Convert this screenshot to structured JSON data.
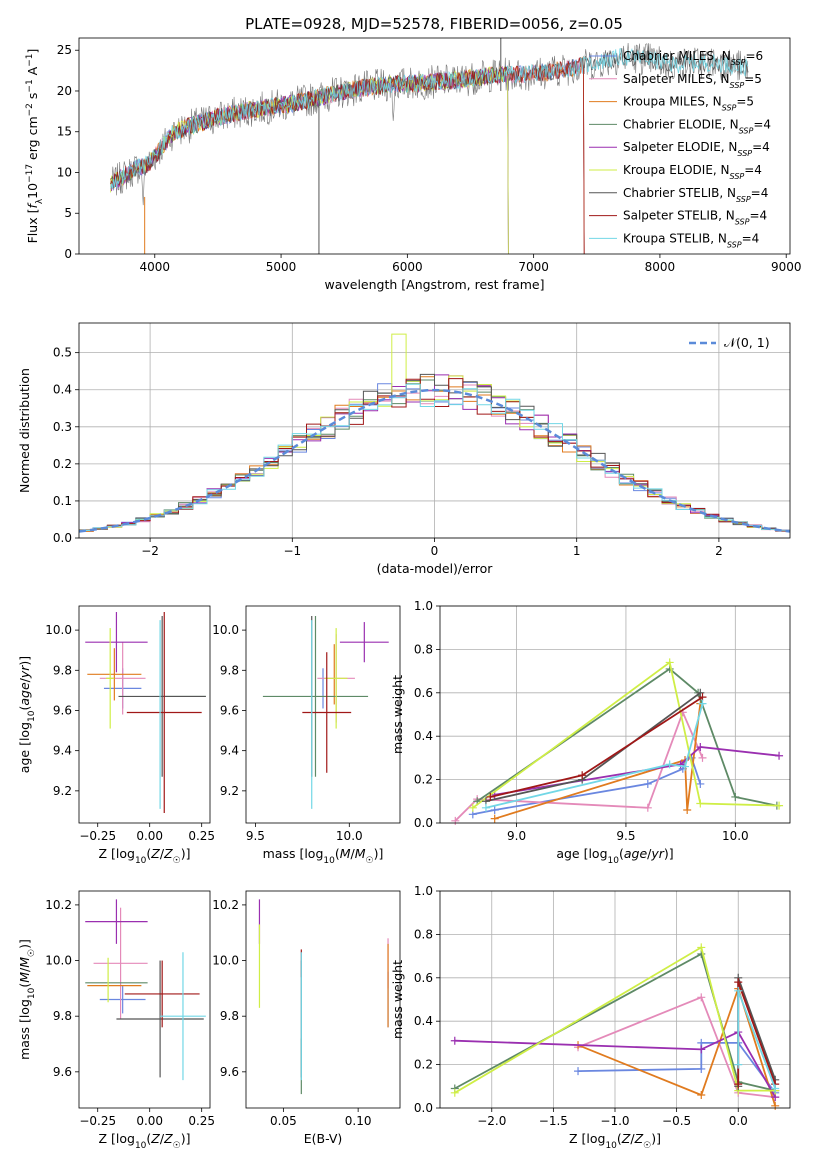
{
  "figure_title": "PLATE=0928, MJD=52578, FIBERID=0056, z=0.05",
  "colors": {
    "Chabrier MILES": "#6a87e0",
    "Salpeter MILES": "#e48ab9",
    "Kroupa MILES": "#e07b1f",
    "Chabrier ELODIE": "#5e8a66",
    "Salpeter ELODIE": "#9a2fb0",
    "Kroupa ELODIE": "#cfee46",
    "Chabrier STELIB": "#555555",
    "Salpeter STELIB": "#a01818",
    "Kroupa STELIB": "#72d7e6"
  },
  "chart_data": [
    {
      "id": "spectrum",
      "type": "line",
      "title": "PLATE=0928, MJD=52578, FIBERID=0056, z=0.05",
      "xlabel": "wavelength [Angstrom, rest frame]",
      "ylabel": "Flux [f_λ 10^-17 erg cm^-2 s^-1 A^-1]",
      "xlim": [
        3400,
        9030
      ],
      "ylim": [
        0,
        26.5
      ],
      "xticks": [
        4000,
        5000,
        6000,
        7000,
        8000,
        9000
      ],
      "yticks": [
        0,
        5,
        10,
        15,
        20,
        25
      ],
      "grid": false,
      "legend": "upper right",
      "continuum": {
        "x": [
          3650,
          3750,
          3850,
          3950,
          4050,
          4150,
          4300,
          4500,
          4700,
          4900,
          5100,
          5300,
          5500,
          5700,
          5900,
          6100,
          6300,
          6500,
          6700,
          6900,
          7100,
          7300,
          7500,
          7700,
          7900,
          8100,
          8300,
          8500,
          8700
        ],
        "y": [
          8.5,
          9.5,
          10.5,
          11,
          13,
          15,
          15.8,
          16.8,
          17.5,
          18,
          18.5,
          19.2,
          20,
          20.5,
          20.8,
          21,
          21.2,
          21.5,
          22,
          22,
          22.3,
          22.8,
          23.5,
          24.2,
          24,
          23.2,
          23.5,
          23.4,
          22.8
        ]
      },
      "series": [
        {
          "name": "Chabrier MILES",
          "label": "Chabrier MILES, N",
          "nssp": "=6",
          "x_range": [
            3650,
            7400
          ]
        },
        {
          "name": "Salpeter MILES",
          "label": "Salpeter MILES, N",
          "nssp": "=5",
          "x_range": [
            3650,
            7400
          ]
        },
        {
          "name": "Kroupa MILES",
          "label": "Kroupa MILES, N",
          "nssp": "=5",
          "x_range": [
            3650,
            7400
          ]
        },
        {
          "name": "Chabrier ELODIE",
          "label": "Chabrier ELODIE, N",
          "nssp": "=4",
          "x_range": [
            3650,
            6800
          ]
        },
        {
          "name": "Salpeter ELODIE",
          "label": "Salpeter ELODIE, N",
          "nssp": "=4",
          "x_range": [
            3650,
            6800
          ]
        },
        {
          "name": "Kroupa ELODIE",
          "label": "Kroupa ELODIE, N",
          "nssp": "=4",
          "x_range": [
            3650,
            6800
          ]
        },
        {
          "name": "Chabrier STELIB",
          "label": "Chabrier STELIB, N",
          "nssp": "=4",
          "x_range": [
            3650,
            8700
          ]
        },
        {
          "name": "Salpeter STELIB",
          "label": "Salpeter STELIB, N",
          "nssp": "=4",
          "x_range": [
            3650,
            7400
          ]
        },
        {
          "name": "Kroupa STELIB",
          "label": "Kroupa STELIB, N",
          "nssp": "=4",
          "x_range": [
            3650,
            8700
          ]
        }
      ]
    },
    {
      "id": "residuals",
      "type": "histogram",
      "xlabel": "(data-model)/error",
      "ylabel": "Normed distribution",
      "xlim": [
        -2.5,
        2.5
      ],
      "ylim": [
        0,
        0.58
      ],
      "xticks": [
        -2,
        -1,
        0,
        1,
        2
      ],
      "yticks": [
        0.0,
        0.1,
        0.2,
        0.3,
        0.4,
        0.5
      ],
      "grid": true,
      "legend": "upper right",
      "reference": {
        "label": "𝒩(0, 1)",
        "color": "#5b8bd9"
      },
      "bin_width": 0.1,
      "series_peaks": [
        0.47,
        0.45,
        0.46,
        0.47,
        0.44,
        0.55,
        0.44,
        0.46,
        0.44
      ]
    },
    {
      "id": "age_vs_Z",
      "type": "errorbar",
      "xlabel": "Z [log10(Z/Z☉)]",
      "ylabel": "age  [log10(age/yr)]",
      "xlim": [
        -0.34,
        0.29
      ],
      "ylim": [
        9.04,
        10.12
      ],
      "xticks": [
        -0.25,
        0.0,
        0.25
      ],
      "yticks": [
        9.2,
        9.4,
        9.6,
        9.8,
        10.0
      ],
      "grid": false,
      "points": [
        {
          "x": -0.13,
          "xerr": 0.09,
          "y": 9.71,
          "yerr": 0.1
        },
        {
          "x": -0.13,
          "xerr": 0.11,
          "y": 9.76,
          "yerr": 0.18
        },
        {
          "x": -0.17,
          "xerr": 0.13,
          "y": 9.78,
          "yerr": 0.13
        },
        {
          "x": 0.16,
          "xerr": 0.11,
          "y": 9.67,
          "yerr": 0.0
        },
        {
          "x": -0.16,
          "xerr": 0.15,
          "y": 9.94,
          "yerr": 0.15
        },
        {
          "x": -0.19,
          "xerr": 0.02,
          "y": 9.76,
          "yerr": 0.25
        },
        {
          "x": 0.06,
          "xerr": 0.21,
          "y": 9.67,
          "yerr": 0.4
        },
        {
          "x": 0.07,
          "xerr": 0.18,
          "y": 9.59,
          "yerr": 0.5
        },
        {
          "x": 0.05,
          "xerr": 0.0,
          "y": 9.58,
          "yerr": 0.47
        }
      ]
    },
    {
      "id": "age_vs_mass",
      "type": "errorbar",
      "xlabel": "mass [log10(M/M☉)]",
      "ylabel": "",
      "xlim": [
        9.45,
        10.27
      ],
      "ylim": [
        9.04,
        10.12
      ],
      "xticks": [
        9.5,
        10.0
      ],
      "yticks": [
        9.2,
        9.4,
        9.6,
        9.8,
        10.0
      ],
      "grid": false,
      "points": [
        {
          "x": 9.86,
          "xerr": 0.0,
          "y": 9.71,
          "yerr": 0.1
        },
        {
          "x": 9.93,
          "xerr": 0.1,
          "y": 9.76,
          "yerr": 0.22
        },
        {
          "x": 9.92,
          "xerr": 0.0,
          "y": 9.78,
          "yerr": 0.15
        },
        {
          "x": 9.82,
          "xerr": 0.28,
          "y": 9.67,
          "yerr": 0.4
        },
        {
          "x": 10.08,
          "xerr": 0.13,
          "y": 9.94,
          "yerr": 0.1
        },
        {
          "x": 9.93,
          "xerr": 0.06,
          "y": 9.76,
          "yerr": 0.25
        },
        {
          "x": 9.8,
          "xerr": 0.0,
          "y": 9.67,
          "yerr": 0.4
        },
        {
          "x": 9.88,
          "xerr": 0.13,
          "y": 9.59,
          "yerr": 0.3
        },
        {
          "x": 9.8,
          "xerr": 0.0,
          "y": 9.58,
          "yerr": 0.47
        }
      ]
    },
    {
      "id": "weight_vs_age",
      "type": "line",
      "xlabel": "age  [log10(age/yr)]",
      "ylabel": "mass weight",
      "xlim": [
        8.65,
        10.25
      ],
      "ylim": [
        0,
        1.0
      ],
      "xticks": [
        9.0,
        9.5,
        10.0
      ],
      "yticks": [
        0.0,
        0.2,
        0.4,
        0.6,
        0.8,
        1.0
      ],
      "grid": true,
      "series": [
        {
          "name": "Chabrier MILES",
          "x": [
            8.8,
            8.9,
            9.6,
            9.76,
            9.77,
            9.8,
            9.84
          ],
          "y": [
            0.04,
            0.06,
            0.18,
            0.25,
            0.29,
            0.3,
            0.18
          ]
        },
        {
          "name": "Salpeter MILES",
          "x": [
            8.72,
            8.82,
            9.6,
            9.76,
            9.85
          ],
          "y": [
            0.01,
            0.11,
            0.07,
            0.51,
            0.3
          ]
        },
        {
          "name": "Kroupa MILES",
          "x": [
            8.9,
            9.77,
            9.78,
            9.84
          ],
          "y": [
            0.02,
            0.29,
            0.06,
            0.55
          ]
        },
        {
          "name": "Chabrier ELODIE",
          "x": [
            8.82,
            9.7,
            9.83,
            10.0,
            10.19
          ],
          "y": [
            0.1,
            0.71,
            0.6,
            0.12,
            0.08
          ]
        },
        {
          "name": "Salpeter ELODIE",
          "x": [
            8.9,
            9.75,
            9.84,
            10.2
          ],
          "y": [
            0.13,
            0.27,
            0.35,
            0.31
          ]
        },
        {
          "name": "Kroupa ELODIE",
          "x": [
            8.8,
            9.7,
            9.84,
            10.2
          ],
          "y": [
            0.07,
            0.74,
            0.09,
            0.08
          ]
        },
        {
          "name": "Chabrier STELIB",
          "x": [
            8.86,
            9.3,
            9.84
          ],
          "y": [
            0.1,
            0.2,
            0.6
          ]
        },
        {
          "name": "Salpeter STELIB",
          "x": [
            8.88,
            9.3,
            9.85
          ],
          "y": [
            0.12,
            0.22,
            0.58
          ]
        },
        {
          "name": "Kroupa STELIB",
          "x": [
            8.86,
            9.7,
            9.77,
            9.85
          ],
          "y": [
            0.07,
            0.27,
            0.26,
            0.55
          ]
        }
      ]
    },
    {
      "id": "mass_vs_Z",
      "type": "errorbar",
      "xlabel": "Z [log10(Z/Z☉)]",
      "ylabel": "mass [log10(M/M☉)]",
      "xlim": [
        -0.34,
        0.29
      ],
      "ylim": [
        9.47,
        10.25
      ],
      "xticks": [
        -0.25,
        0.0,
        0.25
      ],
      "yticks": [
        9.6,
        9.8,
        10.0,
        10.2
      ],
      "grid": false,
      "points": [
        {
          "x": -0.13,
          "xerr": 0.11,
          "y": 9.86,
          "yerr": 0.05
        },
        {
          "x": -0.14,
          "xerr": 0.13,
          "y": 9.99,
          "yerr": 0.2
        },
        {
          "x": -0.17,
          "xerr": 0.13,
          "y": 9.91,
          "yerr": 0.0
        },
        {
          "x": -0.16,
          "xerr": 0.15,
          "y": 9.92,
          "yerr": 0.0
        },
        {
          "x": -0.16,
          "xerr": 0.15,
          "y": 10.14,
          "yerr": 0.08
        },
        {
          "x": -0.2,
          "xerr": 0.0,
          "y": 9.93,
          "yerr": 0.08
        },
        {
          "x": 0.05,
          "xerr": 0.21,
          "y": 9.79,
          "yerr": 0.21
        },
        {
          "x": 0.06,
          "xerr": 0.18,
          "y": 9.88,
          "yerr": 0.12
        },
        {
          "x": 0.16,
          "xerr": 0.11,
          "y": 9.8,
          "yerr": 0.23
        }
      ]
    },
    {
      "id": "mass_vs_ebv",
      "type": "errorbar",
      "xlabel": "E(B-V)",
      "ylabel": "",
      "xlim": [
        0.025,
        0.128
      ],
      "ylim": [
        9.47,
        10.25
      ],
      "xticks": [
        0.05,
        0.1
      ],
      "yticks": [
        9.6,
        9.8,
        10.0,
        10.2
      ],
      "grid": false,
      "points": [
        {
          "x": 0.12,
          "xerr": 0.0,
          "y": 9.86,
          "yerr": 0.1
        },
        {
          "x": 0.12,
          "xerr": 0.0,
          "y": 9.99,
          "yerr": 0.09
        },
        {
          "x": 0.12,
          "xerr": 0.0,
          "y": 9.91,
          "yerr": 0.15
        },
        {
          "x": 0.062,
          "xerr": 0.0,
          "y": 9.62,
          "yerr": 0.1
        },
        {
          "x": 0.034,
          "xerr": 0.0,
          "y": 10.14,
          "yerr": 0.08
        },
        {
          "x": 0.034,
          "xerr": 0.0,
          "y": 9.98,
          "yerr": 0.15
        },
        {
          "x": 0.062,
          "xerr": 0.0,
          "y": 9.79,
          "yerr": 0.21
        },
        {
          "x": 0.062,
          "xerr": 0.0,
          "y": 9.99,
          "yerr": 0.05
        },
        {
          "x": 0.062,
          "xerr": 0.0,
          "y": 9.8,
          "yerr": 0.23
        }
      ]
    },
    {
      "id": "weight_vs_Z",
      "type": "line",
      "xlabel": "Z [log10(Z/Z☉)]",
      "ylabel": "mass weight",
      "xlim": [
        -2.42,
        0.42
      ],
      "ylim": [
        0,
        1.0
      ],
      "xticks": [
        -2.0,
        -1.5,
        -1.0,
        -0.5,
        0.0
      ],
      "yticks": [
        0.0,
        0.2,
        0.4,
        0.6,
        0.8,
        1.0
      ],
      "grid": true,
      "series": [
        {
          "name": "Chabrier MILES",
          "x": [
            -1.3,
            -0.3,
            -0.3,
            0.0,
            0.3
          ],
          "y": [
            0.17,
            0.18,
            0.3,
            0.3,
            0.07
          ]
        },
        {
          "name": "Salpeter MILES",
          "x": [
            -1.3,
            -0.3,
            0.0,
            0.3
          ],
          "y": [
            0.28,
            0.51,
            0.07,
            0.05
          ]
        },
        {
          "name": "Kroupa MILES",
          "x": [
            -1.3,
            -0.3,
            0.0,
            0.3
          ],
          "y": [
            0.29,
            0.06,
            0.55,
            0.01
          ]
        },
        {
          "name": "Chabrier ELODIE",
          "x": [
            -2.3,
            -0.3,
            0.0,
            0.3
          ],
          "y": [
            0.09,
            0.71,
            0.12,
            0.08
          ]
        },
        {
          "name": "Salpeter ELODIE",
          "x": [
            -2.3,
            -0.3,
            0.0,
            0.3
          ],
          "y": [
            0.31,
            0.27,
            0.35,
            0.05
          ]
        },
        {
          "name": "Kroupa ELODIE",
          "x": [
            -2.3,
            -0.3,
            0.0,
            0.3
          ],
          "y": [
            0.07,
            0.74,
            0.08,
            0.08
          ]
        },
        {
          "name": "Chabrier STELIB",
          "x": [
            0.0,
            0.0,
            0.3
          ],
          "y": [
            0.1,
            0.6,
            0.13
          ]
        },
        {
          "name": "Salpeter STELIB",
          "x": [
            0.0,
            0.0,
            0.3
          ],
          "y": [
            0.11,
            0.58,
            0.11
          ]
        },
        {
          "name": "Kroupa STELIB",
          "x": [
            0.0,
            0.0,
            0.3
          ],
          "y": [
            0.2,
            0.54,
            0.09
          ]
        }
      ]
    }
  ]
}
